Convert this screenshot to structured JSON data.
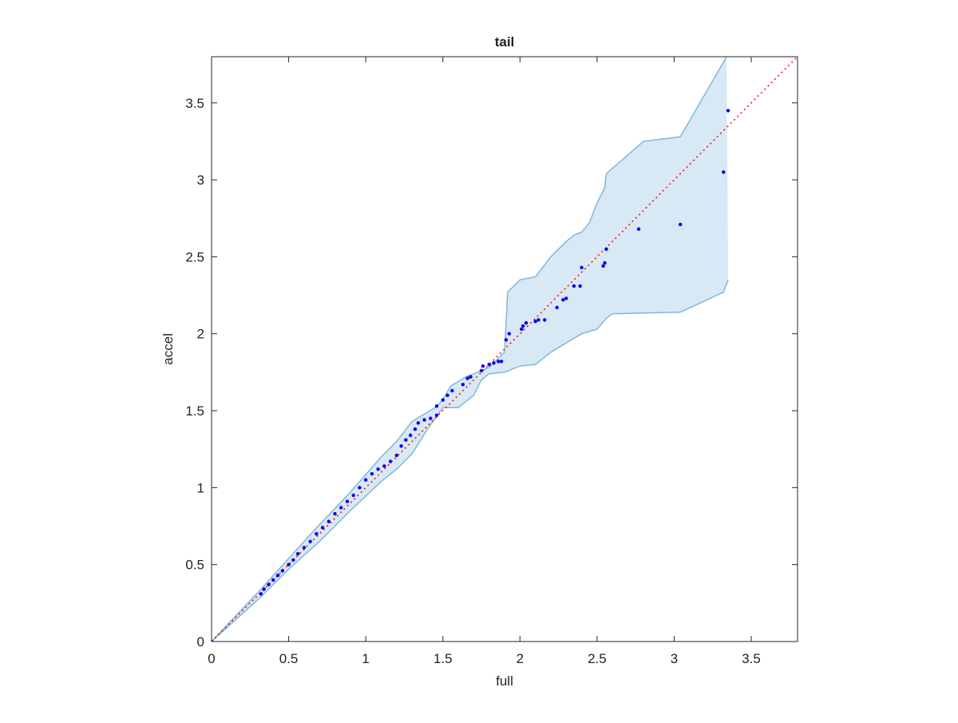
{
  "chart_data": {
    "type": "scatter",
    "title": "tail",
    "xlabel": "full",
    "ylabel": "accel",
    "xlim": [
      0,
      3.8
    ],
    "ylim": [
      0,
      3.8
    ],
    "xticks": [
      0,
      0.5,
      1,
      1.5,
      2,
      2.5,
      3,
      3.5
    ],
    "yticks": [
      0,
      0.5,
      1,
      1.5,
      2,
      2.5,
      3,
      3.5
    ],
    "color": "#0000ee",
    "x": [
      0,
      0.32,
      0.34,
      0.37,
      0.4,
      0.43,
      0.46,
      0.5,
      0.53,
      0.56,
      0.6,
      0.64,
      0.68,
      0.72,
      0.76,
      0.8,
      0.84,
      0.88,
      0.92,
      0.96,
      1.0,
      1.04,
      1.08,
      1.12,
      1.16,
      1.2,
      1.23,
      1.26,
      1.29,
      1.32,
      1.34,
      1.38,
      1.42,
      1.46,
      1.46,
      1.5,
      1.53,
      1.56,
      1.63,
      1.66,
      1.68,
      1.75,
      1.76,
      1.8,
      1.83,
      1.86,
      1.88,
      1.91,
      1.93,
      2.01,
      2.02,
      2.04,
      2.1,
      2.12,
      2.16,
      2.24,
      2.28,
      2.3,
      2.35,
      2.39,
      2.4,
      2.54,
      2.55,
      2.56,
      2.77,
      3.04,
      3.32,
      3.35
    ],
    "y": [
      0,
      0.31,
      0.34,
      0.37,
      0.4,
      0.43,
      0.46,
      0.5,
      0.53,
      0.57,
      0.61,
      0.65,
      0.7,
      0.74,
      0.78,
      0.83,
      0.87,
      0.91,
      0.95,
      1.0,
      1.05,
      1.09,
      1.12,
      1.14,
      1.17,
      1.21,
      1.27,
      1.31,
      1.34,
      1.38,
      1.42,
      1.44,
      1.45,
      1.47,
      1.53,
      1.57,
      1.6,
      1.63,
      1.67,
      1.71,
      1.72,
      1.76,
      1.79,
      1.8,
      1.81,
      1.82,
      1.82,
      1.96,
      2.0,
      2.03,
      2.05,
      2.07,
      2.08,
      2.09,
      2.09,
      2.17,
      2.22,
      2.23,
      2.31,
      2.31,
      2.43,
      2.44,
      2.46,
      2.55,
      2.68,
      2.71,
      3.05,
      3.45
    ],
    "band": {
      "color": "#7fb8dc",
      "fill": "#d8e8f4",
      "upper": {
        "x": [
          0,
          0.32,
          0.5,
          0.7,
          0.9,
          1.1,
          1.2,
          1.3,
          1.45,
          1.5,
          1.55,
          1.65,
          1.8,
          1.9,
          1.92,
          2.0,
          2.1,
          2.2,
          2.3,
          2.35,
          2.4,
          2.45,
          2.5,
          2.55,
          2.56,
          2.8,
          3.04,
          3.34
        ],
        "y": [
          0,
          0.34,
          0.54,
          0.76,
          0.97,
          1.2,
          1.3,
          1.43,
          1.52,
          1.57,
          1.66,
          1.72,
          1.78,
          1.88,
          2.27,
          2.35,
          2.37,
          2.5,
          2.6,
          2.64,
          2.66,
          2.72,
          2.85,
          2.95,
          3.04,
          3.25,
          3.28,
          3.8
        ]
      },
      "lower": {
        "x": [
          0,
          0.32,
          0.5,
          0.7,
          0.9,
          1.1,
          1.2,
          1.3,
          1.4,
          1.45,
          1.5,
          1.6,
          1.7,
          1.75,
          1.8,
          1.9,
          2.0,
          2.1,
          2.2,
          2.4,
          2.5,
          2.56,
          2.6,
          3.04,
          3.32,
          3.35
        ],
        "y": [
          0,
          0.29,
          0.47,
          0.65,
          0.85,
          1.04,
          1.12,
          1.22,
          1.38,
          1.45,
          1.52,
          1.52,
          1.6,
          1.7,
          1.74,
          1.75,
          1.79,
          1.8,
          1.88,
          2.0,
          2.03,
          2.1,
          2.13,
          2.14,
          2.27,
          2.35
        ]
      }
    },
    "reference_line": {
      "x": [
        0,
        3.8
      ],
      "y": [
        0,
        3.8
      ],
      "color": "#ff0000"
    }
  }
}
